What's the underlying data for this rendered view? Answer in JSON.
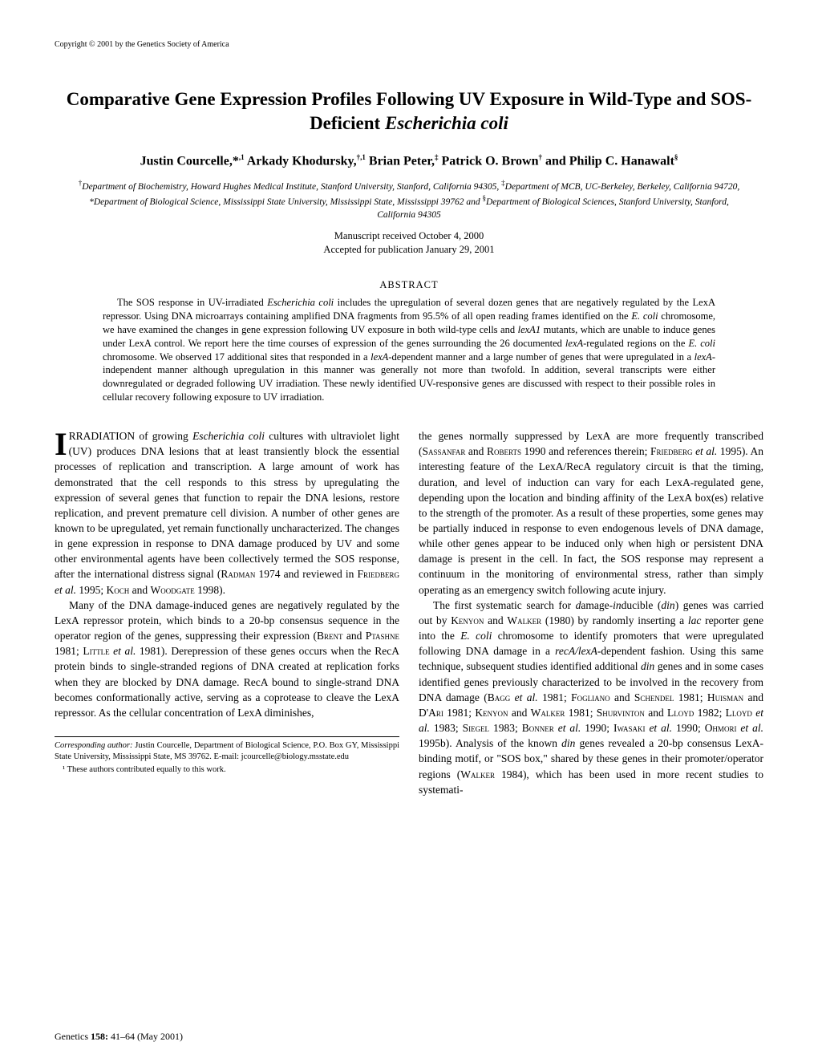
{
  "header": {
    "copyright": "Copyright © 2001 by the Genetics Society of America"
  },
  "title": "Comparative Gene Expression Profiles Following UV Exposure in Wild-Type and SOS-Deficient Escherichia coli",
  "authors": "Justin Courcelle,*,¹ Arkady Khodursky,†,¹ Brian Peter,‡ Patrick O. Brown† and Philip C. Hanawalt§",
  "affiliations": "†Department of Biochemistry, Howard Hughes Medical Institute, Stanford University, Stanford, California 94305, ‡Department of MCB, UC-Berkeley, Berkeley, California 94720, *Department of Biological Science, Mississippi State University, Mississippi State, Mississippi 39762 and §Department of Biological Sciences, Stanford University, Stanford, California 94305",
  "dates": {
    "received": "Manuscript received October 4, 2000",
    "accepted": "Accepted for publication January 29, 2001"
  },
  "abstract": {
    "heading": "ABSTRACT",
    "body": "The SOS response in UV-irradiated Escherichia coli includes the upregulation of several dozen genes that are negatively regulated by the LexA repressor. Using DNA microarrays containing amplified DNA fragments from 95.5% of all open reading frames identified on the E. coli chromosome, we have examined the changes in gene expression following UV exposure in both wild-type cells and lexA1 mutants, which are unable to induce genes under LexA control. We report here the time courses of expression of the genes surrounding the 26 documented lexA-regulated regions on the E. coli chromosome. We observed 17 additional sites that responded in a lexA-dependent manner and a large number of genes that were upregulated in a lexA-independent manner although upregulation in this manner was generally not more than twofold. In addition, several transcripts were either downregulated or degraded following UV irradiation. These newly identified UV-responsive genes are discussed with respect to their possible roles in cellular recovery following exposure to UV irradiation."
  },
  "body": {
    "left": {
      "p1_dropcap": "I",
      "p1": "RRADIATION of growing Escherichia coli cultures with ultraviolet light (UV) produces DNA lesions that at least transiently block the essential processes of replication and transcription. A large amount of work has demonstrated that the cell responds to this stress by upregulating the expression of several genes that function to repair the DNA lesions, restore replication, and prevent premature cell division. A number of other genes are known to be upregulated, yet remain functionally uncharacterized. The changes in gene expression in response to DNA damage produced by UV and some other environmental agents have been collectively termed the SOS response, after the international distress signal (Radman 1974 and reviewed in Friedberg et al. 1995; Koch and Woodgate 1998).",
      "p2": "Many of the DNA damage-induced genes are negatively regulated by the LexA repressor protein, which binds to a 20-bp consensus sequence in the operator region of the genes, suppressing their expression (Brent and Ptashne 1981; Little et al. 1981). Derepression of these genes occurs when the RecA protein binds to single-stranded regions of DNA created at replication forks when they are blocked by DNA damage. RecA bound to single-strand DNA becomes conformationally active, serving as a coprotease to cleave the LexA repressor. As the cellular concentration of LexA diminishes,"
    },
    "right": {
      "p1": "the genes normally suppressed by LexA are more frequently transcribed (Sassanfar and Roberts 1990 and references therein; Friedberg et al. 1995). An interesting feature of the LexA/RecA regulatory circuit is that the timing, duration, and level of induction can vary for each LexA-regulated gene, depending upon the location and binding affinity of the LexA box(es) relative to the strength of the promoter. As a result of these properties, some genes may be partially induced in response to even endogenous levels of DNA damage, while other genes appear to be induced only when high or persistent DNA damage is present in the cell. In fact, the SOS response may represent a continuum in the monitoring of environmental stress, rather than simply operating as an emergency switch following acute injury.",
      "p2": "The first systematic search for damage-inducible (din) genes was carried out by Kenyon and Walker (1980) by randomly inserting a lac reporter gene into the E. coli chromosome to identify promoters that were upregulated following DNA damage in a recA/lexA-dependent fashion. Using this same technique, subsequent studies identified additional din genes and in some cases identified genes previously characterized to be involved in the recovery from DNA damage (Bagg et al. 1981; Fogliano and Schendel 1981; Huisman and D'Ari 1981; Kenyon and Walker 1981; Shurvinton and Lloyd 1982; Lloyd et al. 1983; Siegel 1983; Bonner et al. 1990; Iwasaki et al. 1990; Ohmori et al. 1995b). Analysis of the known din genes revealed a 20-bp consensus LexA-binding motif, or \"SOS box,\" shared by these genes in their promoter/operator regions (Walker 1984), which has been used in more recent studies to systemati-"
    }
  },
  "corresponding": {
    "label": "Corresponding author:",
    "text": " Justin Courcelle, Department of Biological Science, P.O. Box GY, Mississippi State University, Mississippi State, MS 39762.  E-mail: jcourcelle@biology.msstate.edu"
  },
  "footnote": "¹ These authors contributed equally to this work.",
  "footer": "Genetics 158: 41–64 (May 2001)"
}
